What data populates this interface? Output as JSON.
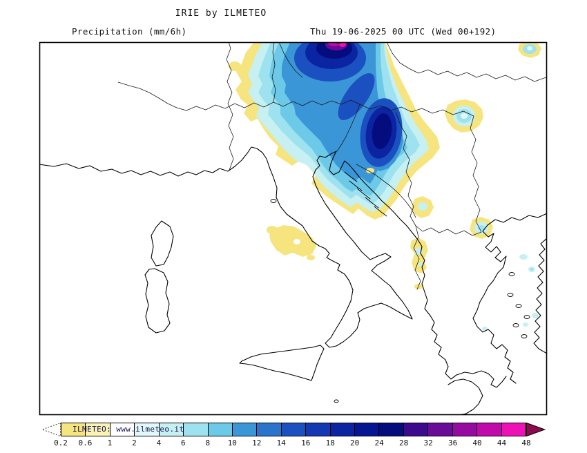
{
  "header": {
    "title": "IRIE by ILMETEO",
    "left_label": "Precipitation (mm/6h)",
    "right_label": "Thu 19-06-2025 00 UTC (Wed 00+192)"
  },
  "colorbar": {
    "watermark": "ILMETEO: www.ilmeteo.it",
    "unit": "mm/6h",
    "tick_labels": [
      "0.2",
      "0.6",
      "1",
      "2",
      "4",
      "6",
      "8",
      "10",
      "12",
      "14",
      "16",
      "18",
      "20",
      "24",
      "28",
      "32",
      "36",
      "40",
      "44",
      "48"
    ],
    "segment_colors": [
      "#f6e47e",
      "#fbf2b4",
      "#ffffff",
      "#e2f8f8",
      "#c6f0f2",
      "#9fe2ef",
      "#6ccae8",
      "#3b96d8",
      "#2a74cc",
      "#1b50c0",
      "#1238b2",
      "#0a24a2",
      "#041692",
      "#040c7e",
      "#3c0a8e",
      "#6a0a98",
      "#960aa2",
      "#c20aac",
      "#ee12b6"
    ],
    "below_scale_color": "#ffffff",
    "above_scale_color": "#8c0a50"
  },
  "map": {
    "frame_color": "#000000",
    "coastline_color": "#000000",
    "background_color": "#ffffff",
    "regions_visible": [
      "Italy",
      "Corsica",
      "Sardinia",
      "Sicily",
      "Southern France",
      "Adriatic Sea",
      "Alps",
      "Western Balkans",
      "Aegean Sea"
    ],
    "precipitation_features": [
      {
        "area": "Alps / Austria to western Balkans",
        "description": "large rain system, widespread 2-16 mm/6h, cores 16-28 mm/6h, small maxima above 32 mm/6h at the northern map edge"
      },
      {
        "area": "Bosnia / Serbia",
        "description": "southward tongue of 4-20 mm/6h rain"
      },
      {
        "area": "Central Italy (Apennines)",
        "description": "isolated light spots 0.2-1 mm/6h"
      },
      {
        "area": "Albania / North Macedonia",
        "description": "small cells 0.2-6 mm/6h"
      },
      {
        "area": "Pannonian plain",
        "description": "isolated cell 2-8 mm/6h"
      },
      {
        "area": "Aegean area",
        "description": "few weak cells 2-8 mm/6h"
      }
    ]
  }
}
